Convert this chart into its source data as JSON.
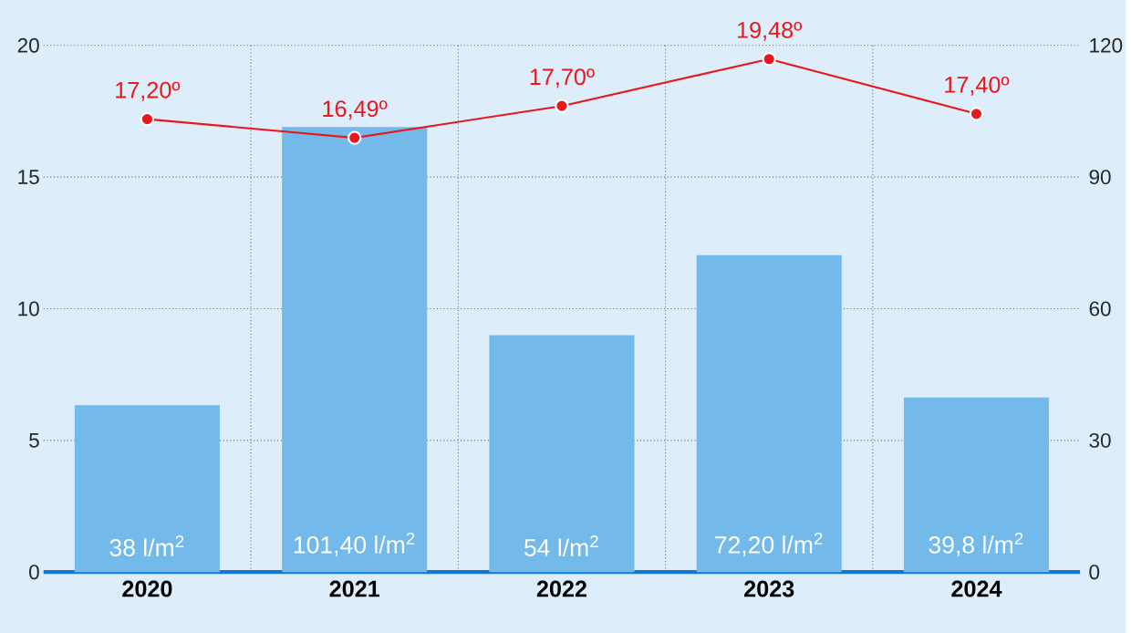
{
  "chart_data": {
    "type": "bar",
    "categories": [
      "2020",
      "2021",
      "2022",
      "2023",
      "2024"
    ],
    "series": [
      {
        "axis": "y2",
        "color": "#73b9ea",
        "values": [
          38,
          101.4,
          54,
          72.2,
          39.8
        ],
        "value_labels": [
          "38 l/m$^{2}$",
          "101,40 l/m$^{2}$",
          "54 l/m$^{2}$",
          "72,20 l/m$^{2}$",
          "39,8 l/m$^{2}$"
        ]
      },
      {
        "type": "line",
        "axis": "y",
        "color": "#e8191e",
        "marker": "circle",
        "line_style": "solid",
        "values": [
          17.2,
          16.49,
          17.7,
          19.48,
          17.4
        ],
        "value_labels": [
          "17,20º",
          "16,49º",
          "17,70º",
          "19,48º",
          "17,40º"
        ]
      }
    ],
    "ylim": [
      0,
      20
    ],
    "yticks": [
      0,
      5,
      10,
      15,
      20
    ],
    "y2lim": [
      0,
      120
    ],
    "y2ticks": [
      0,
      30,
      60,
      90,
      120
    ],
    "grid": true
  }
}
